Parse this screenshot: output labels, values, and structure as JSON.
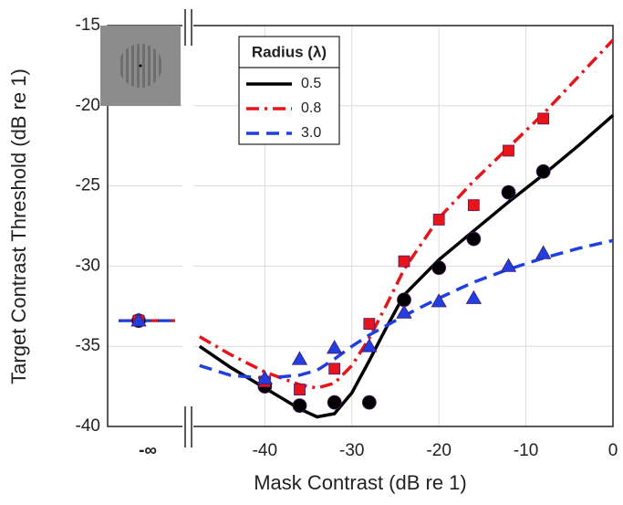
{
  "chart_data": {
    "type": "scatter",
    "xlabel": "Mask Contrast (dB re 1)",
    "ylabel": "Target Contrast Threshold (dB re 1)",
    "xlim": [
      -48,
      0
    ],
    "ylim": [
      -40,
      -15
    ],
    "xticks": [
      -40,
      -30,
      -20,
      -10,
      0
    ],
    "yticks": [
      -15,
      -20,
      -25,
      -30,
      -35,
      -40
    ],
    "x_inf_label": "-∞",
    "grid": true,
    "legend_title": "Radius (λ)",
    "legend_position": "upper-left",
    "x": [
      -40,
      -36,
      -32,
      -28,
      -24,
      -20,
      -16,
      -12,
      -8
    ],
    "fit_x": [
      -47.5,
      -44,
      -40,
      -36,
      -34,
      -32,
      -30,
      -28,
      -26,
      -24,
      -20,
      -16,
      -12,
      -8,
      -4,
      0
    ],
    "series": [
      {
        "name": "0.5",
        "color": "#000000",
        "marker": "circle",
        "dash": "solid",
        "inf_value": -33.4,
        "values": [
          -37.5,
          -38.7,
          -38.5,
          -38.5,
          -32.1,
          -30.1,
          -28.3,
          -25.4,
          -24.1
        ],
        "fit": [
          -35,
          -36.3,
          -37.6,
          -38.9,
          -39.4,
          -39.2,
          -37.9,
          -35.9,
          -33.8,
          -31.8,
          -29.6,
          -27.8,
          -26.0,
          -24.3,
          -22.5,
          -20.6
        ]
      },
      {
        "name": "0.8",
        "color": "#e8141c",
        "marker": "square",
        "dash": "dashdot",
        "inf_value": -33.4,
        "values": [
          -37.2,
          -37.7,
          -36.4,
          -33.6,
          -29.7,
          -27.1,
          -26.2,
          -22.8,
          -20.8
        ],
        "fit": [
          -34.4,
          -35.5,
          -36.6,
          -37.4,
          -37.6,
          -37.3,
          -36.2,
          -34.5,
          -32.4,
          -30.2,
          -27.0,
          -24.7,
          -22.6,
          -20.5,
          -18.2,
          -15.9
        ]
      },
      {
        "name": "3.0",
        "color": "#1f3fe0",
        "marker": "triangle",
        "dash": "dashed",
        "inf_value": -33.4,
        "values": [
          -37.0,
          -35.8,
          -35.1,
          -35.0,
          -32.9,
          -32.2,
          -32.0,
          -30.0,
          -29.2
        ],
        "fit": [
          -36.2,
          -36.8,
          -37.0,
          -36.8,
          -36.5,
          -35.8,
          -35.0,
          -34.3,
          -33.7,
          -33.1,
          -32.0,
          -31.0,
          -30.2,
          -29.5,
          -28.9,
          -28.4
        ]
      }
    ]
  }
}
